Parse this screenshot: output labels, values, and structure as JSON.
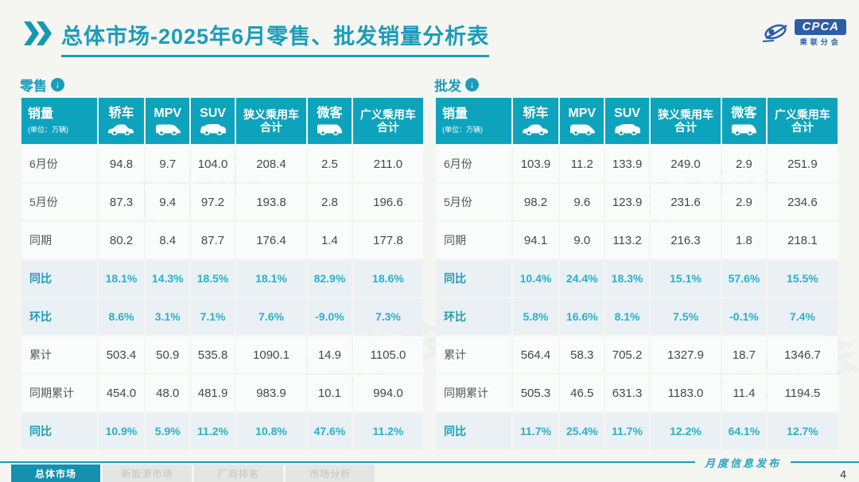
{
  "page": {
    "title_prefix": "总体市场",
    "title_rest": "-2025年6月零售、批发销量分析表",
    "footer_note": "月度信息发布",
    "page_number": "4"
  },
  "logo": {
    "badge": "CPCA",
    "subtext": "乘联分会"
  },
  "footer_tabs": [
    {
      "label": "总体市场",
      "active": true
    },
    {
      "label": "新能源市场",
      "active": false
    },
    {
      "label": "厂商排名",
      "active": false
    },
    {
      "label": "市场分析",
      "active": false
    }
  ],
  "colors": {
    "accent_teal": "#1a9db9",
    "header_bg": "#0ea3bd",
    "highlight_text": "#29b1ca",
    "highlight_row_bg": "#eaf0f4",
    "logo_blue": "#2b5ea7"
  },
  "tables": [
    {
      "section_label": "零售",
      "arrow_icon": "circle-down-arrow-icon",
      "header": {
        "first": "销量",
        "unit": "(单位：万辆)",
        "cols": [
          {
            "label": "轿车",
            "icon": "sedan-car-icon"
          },
          {
            "label": "MPV",
            "icon": "mpv-car-icon"
          },
          {
            "label": "SUV",
            "icon": "suv-car-icon"
          },
          {
            "label": "狭义乘用车",
            "label2": "合计"
          },
          {
            "label": "微客",
            "icon": "van-car-icon"
          },
          {
            "label": "广义乘用车",
            "label2": "合计"
          }
        ]
      },
      "rows": [
        {
          "label": "6月份",
          "highlight": false,
          "values": [
            "94.8",
            "9.7",
            "104.0",
            "208.4",
            "2.5",
            "211.0"
          ]
        },
        {
          "label": "5月份",
          "highlight": false,
          "values": [
            "87.3",
            "9.4",
            "97.2",
            "193.8",
            "2.8",
            "196.6"
          ]
        },
        {
          "label": "同期",
          "highlight": false,
          "values": [
            "80.2",
            "8.4",
            "87.7",
            "176.4",
            "1.4",
            "177.8"
          ]
        },
        {
          "label": "同比",
          "highlight": true,
          "values": [
            "18.1%",
            "14.3%",
            "18.5%",
            "18.1%",
            "82.9%",
            "18.6%"
          ]
        },
        {
          "label": "环比",
          "highlight": true,
          "values": [
            "8.6%",
            "3.1%",
            "7.1%",
            "7.6%",
            "-9.0%",
            "7.3%"
          ]
        },
        {
          "label": "累计",
          "highlight": false,
          "values": [
            "503.4",
            "50.9",
            "535.8",
            "1090.1",
            "14.9",
            "1105.0"
          ]
        },
        {
          "label": "同期累计",
          "highlight": false,
          "values": [
            "454.0",
            "48.0",
            "481.9",
            "983.9",
            "10.1",
            "994.0"
          ]
        },
        {
          "label": "同比",
          "highlight": true,
          "values": [
            "10.9%",
            "5.9%",
            "11.2%",
            "10.8%",
            "47.6%",
            "11.2%"
          ]
        }
      ]
    },
    {
      "section_label": "批发",
      "arrow_icon": "circle-down-arrow-icon",
      "header": {
        "first": "销量",
        "unit": "(单位：万辆)",
        "cols": [
          {
            "label": "轿车",
            "icon": "sedan-car-icon"
          },
          {
            "label": "MPV",
            "icon": "mpv-car-icon"
          },
          {
            "label": "SUV",
            "icon": "suv-car-icon"
          },
          {
            "label": "狭义乘用车",
            "label2": "合计"
          },
          {
            "label": "微客",
            "icon": "van-car-icon"
          },
          {
            "label": "广义乘用车",
            "label2": "合计"
          }
        ]
      },
      "rows": [
        {
          "label": "6月份",
          "highlight": false,
          "values": [
            "103.9",
            "11.2",
            "133.9",
            "249.0",
            "2.9",
            "251.9"
          ]
        },
        {
          "label": "5月份",
          "highlight": false,
          "values": [
            "98.2",
            "9.6",
            "123.9",
            "231.6",
            "2.9",
            "234.6"
          ]
        },
        {
          "label": "同期",
          "highlight": false,
          "values": [
            "94.1",
            "9.0",
            "113.2",
            "216.3",
            "1.8",
            "218.1"
          ]
        },
        {
          "label": "同比",
          "highlight": true,
          "values": [
            "10.4%",
            "24.4%",
            "18.3%",
            "15.1%",
            "57.6%",
            "15.5%"
          ]
        },
        {
          "label": "环比",
          "highlight": true,
          "values": [
            "5.8%",
            "16.6%",
            "8.1%",
            "7.5%",
            "-0.1%",
            "7.4%"
          ]
        },
        {
          "label": "累计",
          "highlight": false,
          "values": [
            "564.4",
            "58.3",
            "705.2",
            "1327.9",
            "18.7",
            "1346.7"
          ]
        },
        {
          "label": "同期累计",
          "highlight": false,
          "values": [
            "505.3",
            "46.5",
            "631.3",
            "1183.0",
            "11.4",
            "1194.5"
          ]
        },
        {
          "label": "同比",
          "highlight": true,
          "values": [
            "11.7%",
            "25.4%",
            "11.7%",
            "12.2%",
            "64.1%",
            "12.7%"
          ]
        }
      ]
    }
  ]
}
